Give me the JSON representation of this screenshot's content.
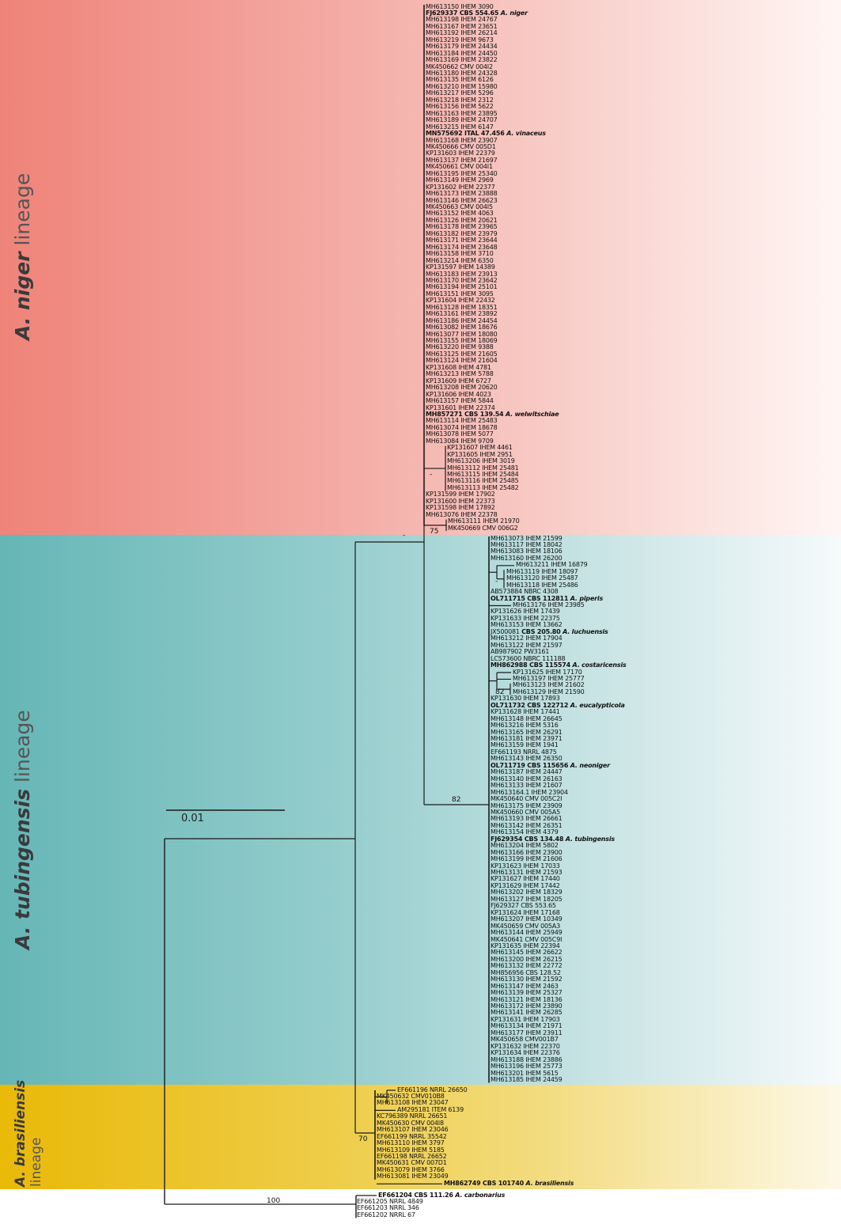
{
  "lineages": {
    "niger": {
      "species": "A. niger",
      "suffix": "lineage",
      "color": "#ef8379"
    },
    "tubingensis": {
      "species": "A. tubingensis",
      "suffix": "lineage",
      "color": "#66b6b6"
    },
    "brasiliensis": {
      "species": "A. brasiliensis",
      "suffix": "lineage",
      "color": "#e9b908"
    }
  },
  "scale_bar": {
    "label": "0.01"
  },
  "support_values": {
    "niger_subclade": "-",
    "niger_pair": "75",
    "niger_tub_split": "-",
    "tub_subclade_a": "-",
    "tub_subclade_b": "82",
    "tub_main": "82",
    "brasiliensis": "70",
    "root_outgroup": "100"
  },
  "taxa": {
    "niger_main_1": [
      {
        "t": "MH613150 IHEM 3090"
      },
      {
        "t": "FJ629337 CBS 554.65",
        "sp": "A. niger",
        "type": true
      },
      {
        "t": "MH613198 IHEM 24767"
      },
      {
        "t": "MH613167 IHEM 23651"
      },
      {
        "t": "MH613192 IHEM 26214"
      },
      {
        "t": "MH613219 IHEM 9673"
      },
      {
        "t": "MH613179 IHEM 24434"
      },
      {
        "t": "MH613184 IHEM 24450"
      },
      {
        "t": "MH613169 IHEM 23822"
      },
      {
        "t": "MK450662 CMV 004I2"
      },
      {
        "t": "MH613180 IHEM 24328"
      },
      {
        "t": "MH613135 IHEM 6126"
      },
      {
        "t": "MH613210 IHEM 15980"
      },
      {
        "t": "MH613217 IHEM 5296"
      },
      {
        "t": "MH613218 IHEM 2312"
      },
      {
        "t": "MH613156 IHEM 5622"
      },
      {
        "t": "MH613163 IHEM 23895"
      },
      {
        "t": "MH613189 IHEM 24707"
      },
      {
        "t": "MH613215 IHEM 6147"
      },
      {
        "t": "MN575692 ITAL 47.456",
        "sp": "A. vinaceus",
        "type": true
      },
      {
        "t": "MH613168 IHEM 23907"
      },
      {
        "t": "MK450666 CMV 005D1"
      },
      {
        "t": "KP131603 IHEM 22379"
      },
      {
        "t": "MH613137 IHEM 21697"
      },
      {
        "t": "MK450661 CMV 004I1"
      },
      {
        "t": "MH613195 IHEM 25340"
      },
      {
        "t": "MH613149 IHEM 2969"
      },
      {
        "t": "KP131602 IHEM 22377"
      },
      {
        "t": "MH613173 IHEM 23888"
      },
      {
        "t": "MH613146 IHEM 26623"
      },
      {
        "t": "MK450663 CMV 004I5"
      },
      {
        "t": "MH613152 IHEM 4063"
      },
      {
        "t": "MH613126 IHEM 20621"
      },
      {
        "t": "MH613178 IHEM 23965"
      },
      {
        "t": "MH613182 IHEM 23979"
      },
      {
        "t": "MH613171 IHEM 23644"
      },
      {
        "t": "MH613174 IHEM 23648"
      },
      {
        "t": "MH613158 IHEM 3710"
      },
      {
        "t": "MH613214 IHEM 6350"
      },
      {
        "t": "KP131597 IHEM 14389"
      },
      {
        "t": "MH613183 IHEM 23913"
      },
      {
        "t": "MH613170 IHEM 23642"
      },
      {
        "t": "MH613194 IHEM 25101"
      },
      {
        "t": "MH613151 IHEM 3095"
      },
      {
        "t": "KP131604 IHEM 22432"
      },
      {
        "t": "MH613128 IHEM 18351"
      },
      {
        "t": "MH613161 IHEM 23892"
      },
      {
        "t": "MH613186 IHEM 24454"
      },
      {
        "t": "MH613082 IHEM 18676"
      },
      {
        "t": "MH613077 IHEM 18080"
      },
      {
        "t": "MH613155 IHEM 18069"
      },
      {
        "t": "MH613220 IHEM 9388"
      },
      {
        "t": "MH613125 IHEM 21605"
      },
      {
        "t": "MH613124 IHEM 21604"
      },
      {
        "t": "KP131608 IHEM 4781"
      },
      {
        "t": "MH613213 IHEM 5788"
      },
      {
        "t": "KP131609 IHEM 6727"
      },
      {
        "t": "MH613208 IHEM 20620"
      },
      {
        "t": "KP131606 IHEM 4023"
      },
      {
        "t": "MH613157 IHEM 5844"
      },
      {
        "t": "KP131601 IHEM 22374"
      },
      {
        "t": "MH857271 CBS 139.54",
        "sp": "A. welwitschiae",
        "type": true
      },
      {
        "t": "MH613114 IHEM 25483"
      },
      {
        "t": "MH613074 IHEM 18678"
      },
      {
        "t": "MH613078 IHEM 5077"
      },
      {
        "t": "MH613084 IHEM 9709"
      }
    ],
    "niger_subclade": [
      {
        "t": "KP131607 IHEM 4461"
      },
      {
        "t": "KP131605 IHEM 2951"
      },
      {
        "t": "MH613206 IHEM 3019"
      },
      {
        "t": "MH613112 IHEM 25481"
      },
      {
        "t": "MH613115 IHEM 25484"
      },
      {
        "t": "MH613116 IHEM 25485"
      },
      {
        "t": "MH613113 IHEM 25482"
      }
    ],
    "niger_main_2": [
      {
        "t": "KP131599 IHEM 17902"
      },
      {
        "t": "KP131600 IHEM 22373"
      },
      {
        "t": "KP131598 IHEM 17892"
      },
      {
        "t": "MH613076 IHEM 22378"
      }
    ],
    "niger_pair": [
      {
        "t": "MH613111 IHEM 21970"
      },
      {
        "t": "MK450669 CMV 006G2"
      }
    ],
    "tub_main_1": [
      {
        "t": "MH613073 IHEM 21599"
      },
      {
        "t": "MH613117 IHEM 18042"
      },
      {
        "t": "MH613083 IHEM 18106"
      },
      {
        "t": "MH613160 IHEM 26200"
      }
    ],
    "tub_sub_a_long": [
      {
        "t": "MH613211 IHEM 16879"
      }
    ],
    "tub_sub_a": [
      {
        "t": "MH613119 IHEM 18097"
      },
      {
        "t": "MH613120 IHEM 25487"
      },
      {
        "t": "MH613118 IHEM 25486"
      }
    ],
    "tub_main_2": [
      {
        "t": "AB573884 NBRC 4308"
      },
      {
        "t": "OL711715 CBS 112811",
        "sp": "A. piperis",
        "type": true
      }
    ],
    "tub_long_1": [
      {
        "t": "MH613176 IHEM 23985"
      }
    ],
    "tub_main_3": [
      {
        "t": "KP131626 IHEM 17439"
      },
      {
        "t": "KP131633 IHEM 22375"
      },
      {
        "t": "MH613153 IHEM 13662"
      },
      {
        "t": "JX500081 CBS 205.80",
        "sp": "A. luchuensis",
        "type": true,
        "partbold": true
      },
      {
        "t": "MH613212 IHEM 17904"
      },
      {
        "t": "MH613122 IHEM 21597"
      },
      {
        "t": "AB987902 PW3161"
      },
      {
        "t": "LC573600 NBRC 111188"
      },
      {
        "t": "MH862988 CBS 115574",
        "sp": "A. costaricensis",
        "type": true
      }
    ],
    "tub_sub_b_long": [
      {
        "t": "KP131625 IHEM 17170"
      },
      {
        "t": "MH613197 IHEM 25777"
      }
    ],
    "tub_sub_b": [
      {
        "t": "MH613123 IHEM 21602"
      },
      {
        "t": "MH613129 IHEM 21590"
      }
    ],
    "tub_main_4": [
      {
        "t": "KP131630 IHEM 17893"
      },
      {
        "t": "OL711732 CBS 122712",
        "sp": "A. eucalypticola",
        "type": true
      },
      {
        "t": "KP131628 IHEM 17441"
      },
      {
        "t": "MH613148 IHEM 26645"
      },
      {
        "t": "MH613216 IHEM 5316"
      },
      {
        "t": "MH613165 IHEM 26291"
      },
      {
        "t": "MH613181 IHEM 23971"
      },
      {
        "t": "MH613159 IHEM 1941"
      },
      {
        "t": "EF661193 NRRL 4875"
      },
      {
        "t": "MH613143 IHEM 26350"
      },
      {
        "t": "OL711719 CBS 115656",
        "sp": "A. neoniger",
        "type": true
      },
      {
        "t": "MH613187 IHEM 24447"
      },
      {
        "t": "MH613140 IHEM 26163"
      },
      {
        "t": "MH613133 IHEM 21607"
      },
      {
        "t": "MH613164.1 IHEM 23904"
      },
      {
        "t": "MK450640 CMV 005C2I"
      },
      {
        "t": "MH613175 IHEM 23909"
      },
      {
        "t": "MK450660 CMV 005A5"
      },
      {
        "t": "MH613193 IHEM 26661"
      },
      {
        "t": "MH613142 IHEM 26351"
      },
      {
        "t": "MH613154 IHEM 4379"
      },
      {
        "t": "FJ629354 CBS 134.48",
        "sp": "A. tubingensis",
        "type": true
      },
      {
        "t": "MH613204 IHEM 5802"
      },
      {
        "t": "MH613166 IHEM 23900"
      },
      {
        "t": "MH613199 IHEM 21606"
      },
      {
        "t": "KP131623 IHEM 17033"
      },
      {
        "t": "MH613131 IHEM 21593"
      },
      {
        "t": "KP131627 IHEM 17440"
      },
      {
        "t": "KP131629 IHEM 17442"
      },
      {
        "t": "MH613202 IHEM 18329"
      },
      {
        "t": "MH613127 IHEM 18205"
      },
      {
        "t": "FJ629327 CBS 553.65"
      },
      {
        "t": "KP131624 IHEM 17168"
      },
      {
        "t": "MH613207 IHEM 10349"
      },
      {
        "t": "MK450659 CMV 005A3"
      },
      {
        "t": "MH613144 IHEM 25949"
      },
      {
        "t": "MK450641 CMV 005C9I"
      },
      {
        "t": "KP131635 IHEM 22394"
      },
      {
        "t": "MH613145 IHEM 26622"
      },
      {
        "t": "MH613200 IHEM 26215"
      },
      {
        "t": "MH613132 IHEM 22772"
      },
      {
        "t": "MH856956 CBS 128.52"
      },
      {
        "t": "MH613130 IHEM 21592"
      },
      {
        "t": "MH613147 IHEM 2463"
      },
      {
        "t": "MH613139 IHEM 25327"
      },
      {
        "t": "MH613121 IHEM 18136"
      },
      {
        "t": "MH613172 IHEM 23890"
      },
      {
        "t": "MH613141 IHEM 26285"
      },
      {
        "t": "KP131631 IHEM 17903"
      },
      {
        "t": "MH613134 IHEM 21971"
      },
      {
        "t": "MH613177 IHEM 23911"
      },
      {
        "t": "MK450658 CMV001B7"
      },
      {
        "t": "KP131632 IHEM 22370"
      },
      {
        "t": "KP131634 IHEM 22376"
      },
      {
        "t": "MH613188 IHEM 23886"
      },
      {
        "t": "MH613196 IHEM 25773"
      },
      {
        "t": "MH613201 IHEM 5615"
      },
      {
        "t": "MH613185 IHEM 24459"
      }
    ],
    "bra": [
      {
        "t": "EF661196 NRRL 26650",
        "long": true
      },
      {
        "t": "MK450632 CMV010B8"
      },
      {
        "t": "MH613108 IHEM 23047"
      },
      {
        "t": "AM295181 ITEM 6139",
        "long": true
      },
      {
        "t": "KC796389 NRRL 26651"
      },
      {
        "t": "MK450630 CMV 004I8"
      },
      {
        "t": "MH613107 IHEM 23046"
      },
      {
        "t": "EF661199 NRRL 35542"
      },
      {
        "t": "MH613110 IHEM 3797"
      },
      {
        "t": "MH613109 IHEM 5185"
      },
      {
        "t": "EF661198 NRRL 26652"
      },
      {
        "t": "MK450631 CMV 007D1"
      },
      {
        "t": "MH613079 IHEM 3766"
      },
      {
        "t": "MH613081 IHEM 23049"
      },
      {
        "t": "MH862749 CBS 101740",
        "sp": "A. brasiliensis",
        "type": true,
        "verylong": true
      }
    ],
    "outgroup": [
      {
        "t": "EF661204 CBS 111.26",
        "sp": "A. carbonarius",
        "type": true,
        "long": true
      },
      {
        "t": "EF661205 NRRL 4849"
      },
      {
        "t": "EF661203 NRRL 346"
      },
      {
        "t": "EF661202 NRRL 67"
      }
    ]
  }
}
